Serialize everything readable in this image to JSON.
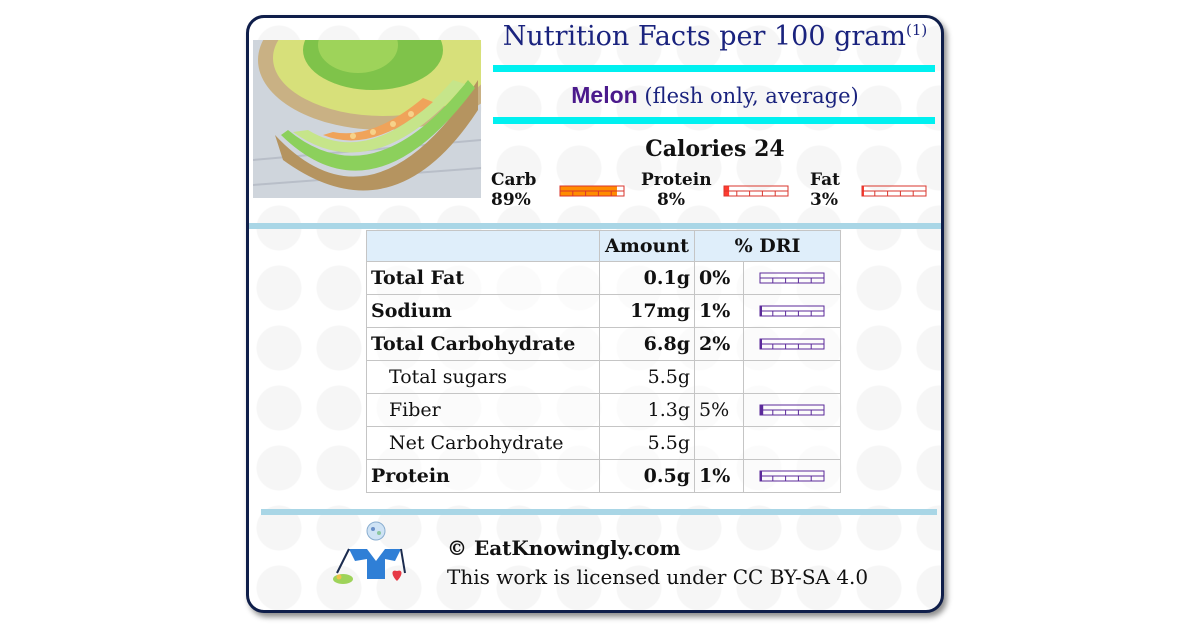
{
  "header": {
    "title": "Nutrition Facts per 100 gram",
    "title_note": "(1)"
  },
  "food": {
    "name": "Melon",
    "qualifier": "(flesh only, average)"
  },
  "calories": {
    "label": "Calories 24"
  },
  "macros": [
    {
      "label": "Carb",
      "percent": "89%",
      "fill": 0.89,
      "color": "#ff8c00"
    },
    {
      "label": "Protein",
      "percent": "8%",
      "fill": 0.08,
      "color": "#ff3b30"
    },
    {
      "label": "Fat",
      "percent": "3%",
      "fill": 0.03,
      "color": "#ff3b30"
    }
  ],
  "table": {
    "headers": {
      "nutrient": "",
      "amount": "Amount",
      "dri": "% DRI"
    },
    "rows": [
      {
        "name": "Total Fat",
        "amount": "0.1g",
        "dri": "0%",
        "dri_fill": 0.0,
        "bold": true,
        "show_bar": true
      },
      {
        "name": "Sodium",
        "amount": "17mg",
        "dri": "1%",
        "dri_fill": 0.01,
        "bold": true,
        "show_bar": true
      },
      {
        "name": "Total Carbohydrate",
        "amount": "6.8g",
        "dri": "2%",
        "dri_fill": 0.02,
        "bold": true,
        "show_bar": true
      },
      {
        "name": "Total sugars",
        "amount": "5.5g",
        "dri": "",
        "dri_fill": 0,
        "bold": false,
        "show_bar": false
      },
      {
        "name": "Fiber",
        "amount": "1.3g",
        "dri": "5%",
        "dri_fill": 0.05,
        "bold": false,
        "show_bar": true
      },
      {
        "name": "Net Carbohydrate",
        "amount": "5.5g",
        "dri": "",
        "dri_fill": 0,
        "bold": false,
        "show_bar": false
      },
      {
        "name": "Protein",
        "amount": "0.5g",
        "dri": "1%",
        "dri_fill": 0.01,
        "bold": true,
        "show_bar": true
      }
    ],
    "bar_color": "#5b2a9a"
  },
  "footer": {
    "copyright": "© EatKnowingly.com",
    "license": "This work is licensed under CC BY-SA 4.0"
  },
  "colors": {
    "title": "#1a237e",
    "accent_cyan": "#00f0f0",
    "divider_blue": "#a9d6e6",
    "card_border": "#0f1e4a"
  },
  "icons": {
    "photo": "melon-photo",
    "logo": "eatknowingly-logo-icon"
  }
}
